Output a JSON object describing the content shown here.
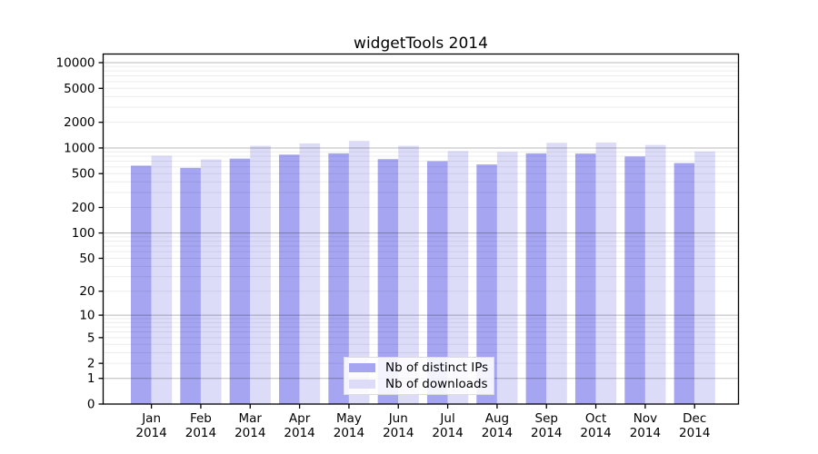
{
  "page": {
    "background": "#ffffff"
  },
  "chart_data": {
    "type": "bar",
    "title": "widgetTools 2014",
    "categories": [
      "Jan 2014",
      "Feb 2014",
      "Mar 2014",
      "Apr 2014",
      "May 2014",
      "Jun 2014",
      "Jul 2014",
      "Aug 2014",
      "Sep 2014",
      "Oct 2014",
      "Nov 2014",
      "Dec 2014"
    ],
    "series": [
      {
        "name": "Nb of distinct IPs",
        "color": "#a5a5f2",
        "values": [
          620,
          585,
          750,
          835,
          865,
          740,
          700,
          640,
          865,
          860,
          795,
          665
        ]
      },
      {
        "name": "Nb of downloads",
        "color": "#dcdcf9",
        "values": [
          810,
          735,
          1060,
          1130,
          1210,
          1060,
          920,
          900,
          1150,
          1160,
          1085,
          910
        ]
      }
    ],
    "xlabel": "",
    "ylabel": "",
    "yscale": "log10(value+1)",
    "yticks": [
      0,
      1,
      2,
      5,
      10,
      20,
      50,
      100,
      200,
      500,
      1000,
      2000,
      5000,
      10000
    ],
    "ylim": [
      0,
      10000
    ],
    "grid": true,
    "grid_minor_values": "2-9 per decade",
    "legend_position": "inside-bottom-center",
    "frame": "full-box"
  },
  "colors": {
    "bar_distinct_ips": "#a5a5f2",
    "bar_downloads": "#dcdcf9",
    "grid_major": "rgba(0,0,0,0.28)",
    "grid_minor": "rgba(0,0,0,0.075)",
    "axis": "#000000",
    "text": "#000000"
  }
}
